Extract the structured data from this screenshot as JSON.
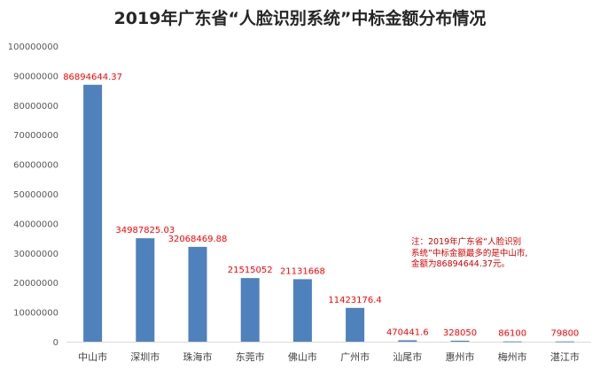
{
  "chart_data": {
    "type": "bar",
    "title": "2019年广东省“人脸识别系统”中标金额分布情况",
    "xlabel": "",
    "ylabel": "",
    "ylim": [
      0,
      100000000
    ],
    "ytick_step": 10000000,
    "ytick_labels": [
      "0",
      "10000000",
      "20000000",
      "30000000",
      "40000000",
      "50000000",
      "60000000",
      "70000000",
      "80000000",
      "90000000",
      "100000000"
    ],
    "grid": false,
    "legend": "none",
    "bar_color": "#4f81bd",
    "label_color": "#ff0000",
    "categories": [
      "中山市",
      "深圳市",
      "珠海市",
      "东莞市",
      "佛山市",
      "广州市",
      "汕尾市",
      "惠州市",
      "梅州市",
      "湛江市"
    ],
    "values": [
      86894644.37,
      34987825.03,
      32068469.88,
      21515052,
      21131668,
      11423176.4,
      470441.6,
      328050,
      86100,
      79800
    ],
    "data_labels": [
      "86894644.37",
      "34987825.03",
      "32068469.88",
      "21515052",
      "21131668",
      "11423176.4",
      "470441.6",
      "328050",
      "86100",
      "79800"
    ],
    "annotation": "注：2019年广东省“人脸识别系统”中标金额最多的是中山市,金额为86894644.37元。"
  }
}
